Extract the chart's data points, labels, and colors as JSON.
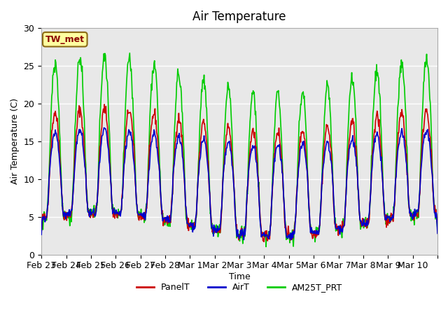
{
  "title": "Air Temperature",
  "ylabel": "Air Temperature (C)",
  "xlabel": "Time",
  "ylim": [
    0,
    30
  ],
  "annotation_text": "TW_met",
  "annotation_color": "#8B0000",
  "annotation_bg": "#FFFFA0",
  "annotation_border": "#8B6914",
  "series_colors": {
    "PanelT": "#CC0000",
    "AirT": "#0000CC",
    "AM25T_PRT": "#00CC00"
  },
  "tick_labels": [
    "Feb 23",
    "Feb 24",
    "Feb 25",
    "Feb 26",
    "Feb 27",
    "Feb 28",
    "Mar 1",
    "Mar 2",
    "Mar 3",
    "Mar 4",
    "Mar 5",
    "Mar 6",
    "Mar 7",
    "Mar 8",
    "Mar 9",
    "Mar 10",
    ""
  ],
  "yticks": [
    0,
    5,
    10,
    15,
    20,
    25,
    30
  ],
  "bg_color": "#E8E8E8",
  "grid_color": "#FFFFFF",
  "fig_bg": "#FFFFFF",
  "line_width": 1.2
}
